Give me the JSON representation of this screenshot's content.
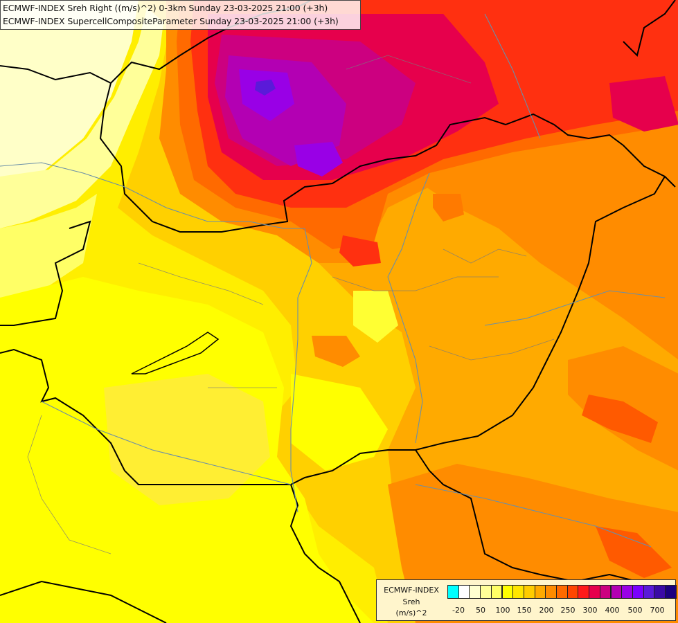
{
  "header": {
    "line1": "ECMWF-INDEX Sreh Right ((m/s)^2) 0-3km Sunday 23-03-2025 21:00 (+3h)",
    "line2": "ECMWF-INDEX SupercellCompositeParameter Sunday 23-03-2025 21:00 (+3h)"
  },
  "legend": {
    "title_line1": "ECMWF-INDEX",
    "title_line2": "Sreh",
    "title_line3": "(m/s)^2",
    "colors": [
      "#00ffff",
      "#ffffff",
      "#ffffd0",
      "#ffff99",
      "#ffff66",
      "#ffff00",
      "#ffe600",
      "#ffcc00",
      "#ffaa00",
      "#ff8c00",
      "#ff6a00",
      "#ff4500",
      "#ff1a1a",
      "#e6004c",
      "#cc0080",
      "#b300b3",
      "#9900e6",
      "#7a00ff",
      "#5a1ad9",
      "#3a0aa6",
      "#1a0080"
    ],
    "ticks": [
      "-20",
      "50",
      "100",
      "150",
      "200",
      "250",
      "300",
      "400",
      "500",
      "700"
    ]
  },
  "colors": {
    "border": "#000000",
    "river": "#6a8fa8",
    "region": "#7a7a7a"
  }
}
